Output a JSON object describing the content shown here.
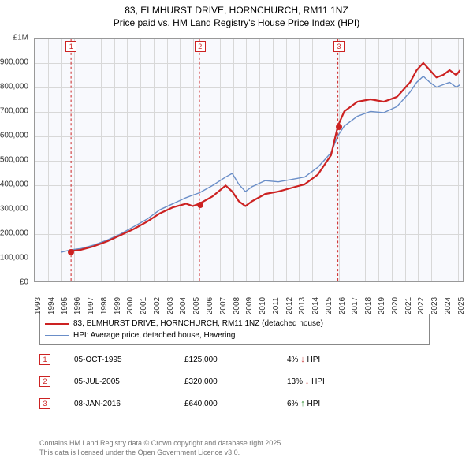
{
  "title": {
    "line1": "83, ELMHURST DRIVE, HORNCHURCH, RM11 1NZ",
    "line2": "Price paid vs. HM Land Registry's House Price Index (HPI)",
    "fontsize": 12,
    "color": "#000000"
  },
  "chart": {
    "type": "line",
    "background_color": "#f8f9fd",
    "border_color": "#999999",
    "grid_color": "#d8d8d8",
    "x": {
      "min": 1993,
      "max": 2025.5,
      "ticks": [
        1993,
        1994,
        1995,
        1996,
        1997,
        1998,
        1999,
        2000,
        2001,
        2002,
        2003,
        2004,
        2005,
        2006,
        2007,
        2008,
        2009,
        2010,
        2011,
        2012,
        2013,
        2014,
        2015,
        2016,
        2017,
        2018,
        2019,
        2020,
        2021,
        2022,
        2023,
        2024,
        2025
      ],
      "label_fontsize": 10
    },
    "y": {
      "min": 0,
      "max": 1000000,
      "ticks": [
        0,
        100000,
        200000,
        300000,
        400000,
        500000,
        600000,
        700000,
        800000,
        900000,
        1000000
      ],
      "tick_labels": [
        "£0",
        "£100,000",
        "£200,000",
        "£300,000",
        "£400,000",
        "£500,000",
        "£600,000",
        "£700,000",
        "£800,000",
        "£900,000",
        "£1M"
      ],
      "label_fontsize": 10
    },
    "series": [
      {
        "name": "property",
        "label": "83, ELMHURST DRIVE, HORNCHURCH, RM11 1NZ (detached house)",
        "color": "#cc2222",
        "line_width": 2.2,
        "points": [
          [
            1995.76,
            125000
          ],
          [
            1996.5,
            130000
          ],
          [
            1997.5,
            145000
          ],
          [
            1998.5,
            165000
          ],
          [
            1999.5,
            190000
          ],
          [
            2000.5,
            215000
          ],
          [
            2001.5,
            245000
          ],
          [
            2002.5,
            280000
          ],
          [
            2003.5,
            305000
          ],
          [
            2004.5,
            320000
          ],
          [
            2005.0,
            310000
          ],
          [
            2005.51,
            320000
          ],
          [
            2006.5,
            350000
          ],
          [
            2007.5,
            395000
          ],
          [
            2008.0,
            370000
          ],
          [
            2008.5,
            330000
          ],
          [
            2009.0,
            310000
          ],
          [
            2009.5,
            330000
          ],
          [
            2010.5,
            360000
          ],
          [
            2011.5,
            370000
          ],
          [
            2012.5,
            385000
          ],
          [
            2013.5,
            400000
          ],
          [
            2014.5,
            440000
          ],
          [
            2015.5,
            520000
          ],
          [
            2016.02,
            640000
          ],
          [
            2016.5,
            700000
          ],
          [
            2017.0,
            720000
          ],
          [
            2017.5,
            740000
          ],
          [
            2018.5,
            750000
          ],
          [
            2019.5,
            740000
          ],
          [
            2020.5,
            760000
          ],
          [
            2021.5,
            820000
          ],
          [
            2022.0,
            870000
          ],
          [
            2022.5,
            900000
          ],
          [
            2023.0,
            870000
          ],
          [
            2023.5,
            840000
          ],
          [
            2024.0,
            850000
          ],
          [
            2024.5,
            870000
          ],
          [
            2025.0,
            850000
          ],
          [
            2025.3,
            870000
          ]
        ]
      },
      {
        "name": "hpi",
        "label": "HPI: Average price, detached house, Havering",
        "color": "#6a8ec8",
        "line_width": 1.4,
        "points": [
          [
            1995.0,
            120000
          ],
          [
            1995.76,
            130000
          ],
          [
            1996.5,
            135000
          ],
          [
            1997.5,
            150000
          ],
          [
            1998.5,
            170000
          ],
          [
            1999.5,
            195000
          ],
          [
            2000.5,
            225000
          ],
          [
            2001.5,
            255000
          ],
          [
            2002.5,
            295000
          ],
          [
            2003.5,
            320000
          ],
          [
            2004.5,
            345000
          ],
          [
            2005.0,
            355000
          ],
          [
            2005.51,
            365000
          ],
          [
            2006.5,
            395000
          ],
          [
            2007.5,
            430000
          ],
          [
            2008.0,
            445000
          ],
          [
            2008.5,
            400000
          ],
          [
            2009.0,
            370000
          ],
          [
            2009.5,
            390000
          ],
          [
            2010.5,
            415000
          ],
          [
            2011.5,
            410000
          ],
          [
            2012.5,
            420000
          ],
          [
            2013.5,
            430000
          ],
          [
            2014.5,
            470000
          ],
          [
            2015.5,
            530000
          ],
          [
            2016.02,
            600000
          ],
          [
            2016.5,
            640000
          ],
          [
            2017.5,
            680000
          ],
          [
            2018.5,
            700000
          ],
          [
            2019.5,
            695000
          ],
          [
            2020.5,
            720000
          ],
          [
            2021.5,
            780000
          ],
          [
            2022.0,
            820000
          ],
          [
            2022.5,
            845000
          ],
          [
            2023.0,
            820000
          ],
          [
            2023.5,
            800000
          ],
          [
            2024.0,
            810000
          ],
          [
            2024.5,
            820000
          ],
          [
            2025.0,
            800000
          ],
          [
            2025.3,
            810000
          ]
        ]
      }
    ],
    "sale_markers": [
      {
        "n": "1",
        "x": 1995.76,
        "y_top": 0,
        "point_y": 125000
      },
      {
        "n": "2",
        "x": 2005.51,
        "y_top": 0,
        "point_y": 320000
      },
      {
        "n": "3",
        "x": 2016.02,
        "y_top": 0,
        "point_y": 640000
      }
    ],
    "marker_color": "#cc2222"
  },
  "legend": {
    "border_color": "#888888",
    "fontsize": 10,
    "items": [
      {
        "color": "#cc2222",
        "width": 2.2,
        "label": "83, ELMHURST DRIVE, HORNCHURCH, RM11 1NZ (detached house)"
      },
      {
        "color": "#6a8ec8",
        "width": 1.4,
        "label": "HPI: Average price, detached house, Havering"
      }
    ]
  },
  "sales": [
    {
      "n": "1",
      "date": "05-OCT-1995",
      "price": "£125,000",
      "diff": "4%",
      "arrow": "↓",
      "arrow_color": "#cc4444",
      "suffix": "HPI"
    },
    {
      "n": "2",
      "date": "05-JUL-2005",
      "price": "£320,000",
      "diff": "13%",
      "arrow": "↓",
      "arrow_color": "#cc4444",
      "suffix": "HPI"
    },
    {
      "n": "3",
      "date": "08-JAN-2016",
      "price": "£640,000",
      "diff": "6%",
      "arrow": "↑",
      "arrow_color": "#2a8a2a",
      "suffix": "HPI"
    }
  ],
  "footer": {
    "line1": "Contains HM Land Registry data © Crown copyright and database right 2025.",
    "line2": "This data is licensed under the Open Government Licence v3.0.",
    "color": "#777777",
    "fontsize": 9
  }
}
